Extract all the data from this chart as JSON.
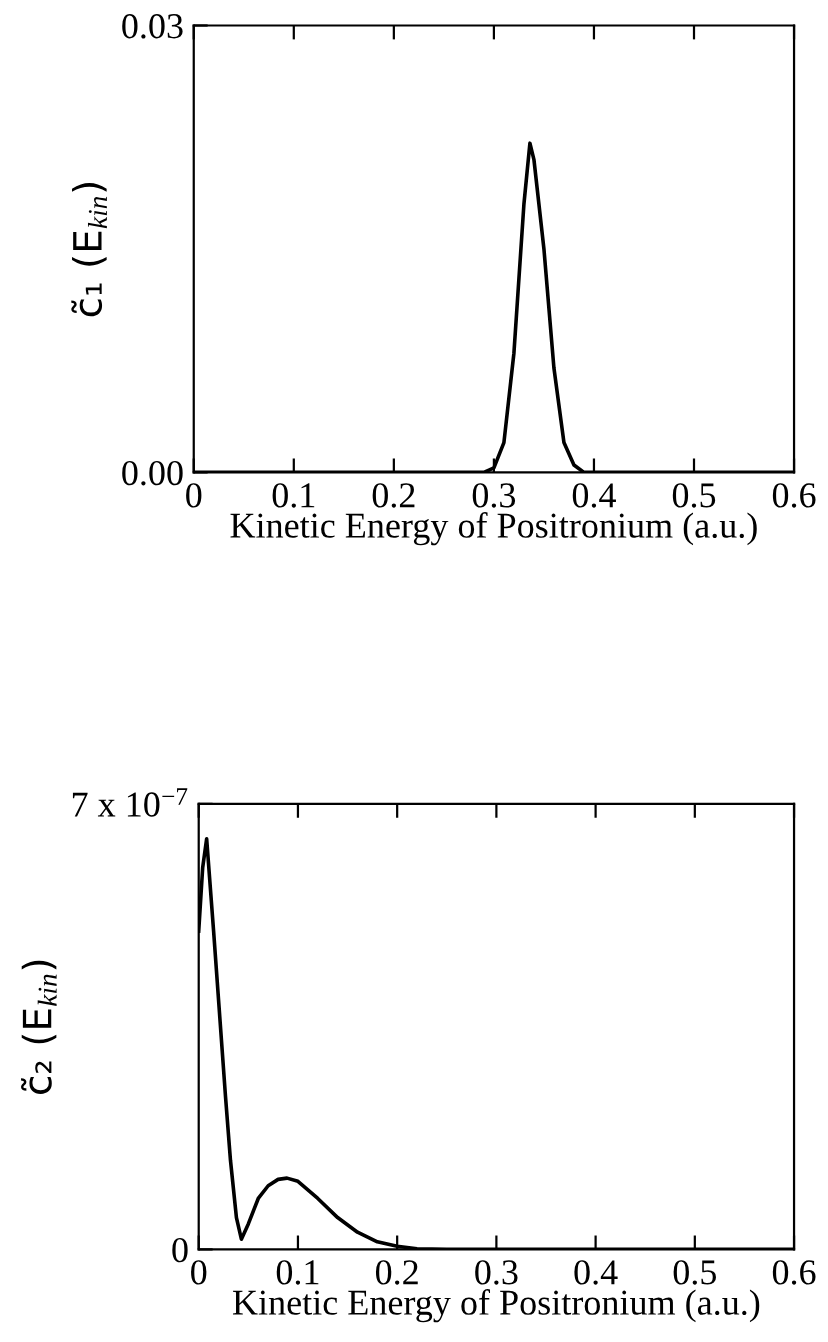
{
  "chart_data": [
    {
      "type": "line",
      "xlabel": "Kinetic Energy of Positronium (a.u.)",
      "ylabel": "c̃₁ (E$_{kin}$)",
      "x": [
        0,
        0.29,
        0.3,
        0.31,
        0.32,
        0.33,
        0.336,
        0.34,
        0.35,
        0.36,
        0.37,
        0.38,
        0.39,
        0.6
      ],
      "series": [
        {
          "color": "#000000",
          "values": [
            0,
            0,
            0.0003,
            0.002,
            0.008,
            0.018,
            0.0221,
            0.021,
            0.015,
            0.007,
            0.002,
            0.0005,
            0,
            0
          ]
        }
      ],
      "xlim": [
        0,
        0.6
      ],
      "xticks": [
        0,
        0.1,
        0.2,
        0.3,
        0.4,
        0.5,
        0.6
      ],
      "ylim": [
        0,
        0.03
      ],
      "yticks": [
        {
          "value": 0,
          "label": "0.00"
        },
        {
          "value": 0.03,
          "label": "0.03"
        }
      ],
      "grid": false,
      "legend": false,
      "marker": "none",
      "line_style": "solid"
    },
    {
      "type": "line",
      "xlabel": "Kinetic Energy of Positronium (a.u.)",
      "ylabel": "c̃₂ (E$_{kin}$)",
      "x": [
        0,
        0.004,
        0.008,
        0.015,
        0.021,
        0.027,
        0.032,
        0.038,
        0.043,
        0.05,
        0.06,
        0.07,
        0.08,
        0.089,
        0.1,
        0.12,
        0.14,
        0.16,
        0.18,
        0.2,
        0.22,
        0.25,
        0.6
      ],
      "series": [
        {
          "color": "#000000",
          "values": [
            5e-07,
            6e-07,
            6.45e-07,
            5e-07,
            3.7e-07,
            2.4e-07,
            1.4e-07,
            5e-08,
            1.6e-08,
            4e-08,
            8e-08,
            1e-07,
            1.1e-07,
            1.12e-07,
            1.07e-07,
            8e-08,
            5e-08,
            2.7e-08,
            1.2e-08,
            5e-09,
            1e-09,
            0,
            0
          ]
        }
      ],
      "xlim": [
        0,
        0.6
      ],
      "xticks": [
        0,
        0.1,
        0.2,
        0.3,
        0.4,
        0.5,
        0.6
      ],
      "ylim": [
        0,
        7e-07
      ],
      "yticks": [
        {
          "value": 0,
          "label": "0"
        },
        {
          "value": 7e-07,
          "label": "7 x 10$^{−7}$"
        }
      ],
      "grid": false,
      "legend": false,
      "marker": "none",
      "line_style": "solid"
    }
  ]
}
